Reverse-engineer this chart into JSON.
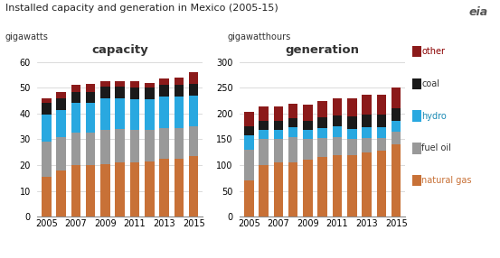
{
  "title": "Installed capacity and generation in Mexico (2005-15)",
  "ylabel_left": "gigawatts",
  "ylabel_right": "gigawatthours",
  "label_left": "capacity",
  "label_right": "generation",
  "years": [
    2005,
    2006,
    2007,
    2008,
    2009,
    2010,
    2011,
    2012,
    2013,
    2014,
    2015
  ],
  "capacity": {
    "natural_gas": [
      15.5,
      18.0,
      20.0,
      20.0,
      20.5,
      21.0,
      21.0,
      21.5,
      22.5,
      22.5,
      23.5
    ],
    "fuel_oil": [
      13.5,
      13.0,
      12.5,
      12.5,
      13.0,
      13.0,
      12.5,
      12.0,
      12.0,
      12.0,
      11.5
    ],
    "hydro": [
      10.5,
      10.5,
      11.5,
      11.5,
      12.5,
      12.0,
      12.0,
      12.0,
      12.0,
      12.0,
      12.0
    ],
    "coal": [
      4.5,
      4.5,
      4.5,
      4.5,
      4.5,
      4.5,
      4.5,
      4.5,
      4.5,
      4.5,
      4.5
    ],
    "other": [
      2.0,
      2.5,
      2.5,
      3.0,
      2.0,
      2.0,
      2.5,
      2.0,
      2.5,
      3.0,
      4.5
    ]
  },
  "generation": {
    "natural_gas": [
      70,
      100,
      105,
      105,
      110,
      115,
      120,
      120,
      125,
      128,
      140
    ],
    "fuel_oil": [
      60,
      50,
      45,
      50,
      40,
      38,
      35,
      30,
      28,
      25,
      25
    ],
    "hydro": [
      28,
      18,
      18,
      18,
      18,
      18,
      20,
      20,
      20,
      20,
      20
    ],
    "coal": [
      18,
      18,
      18,
      18,
      18,
      22,
      22,
      25,
      25,
      25,
      25
    ],
    "other": [
      28,
      28,
      28,
      28,
      32,
      32,
      32,
      35,
      38,
      38,
      40
    ]
  },
  "colors": {
    "natural_gas": "#c87137",
    "fuel_oil": "#999999",
    "hydro": "#29a8e0",
    "coal": "#1a1a1a",
    "other": "#8b1a1a"
  },
  "ylim_capacity": [
    0,
    60
  ],
  "ylim_generation": [
    0,
    300
  ],
  "yticks_capacity": [
    0,
    10,
    20,
    30,
    40,
    50,
    60
  ],
  "yticks_generation": [
    0,
    50,
    100,
    150,
    200,
    250,
    300
  ],
  "bg_color": "#ffffff",
  "bar_width": 0.65,
  "legend_labels": [
    "other",
    "coal",
    "hydro",
    "fuel oil",
    "natural gas"
  ],
  "legend_text_colors": [
    "#8b0000",
    "#333333",
    "#1a8ab5",
    "#333333",
    "#c87137"
  ],
  "legend_box_colors": [
    "#8b1a1a",
    "#1a1a1a",
    "#29a8e0",
    "#999999",
    "#c87137"
  ]
}
